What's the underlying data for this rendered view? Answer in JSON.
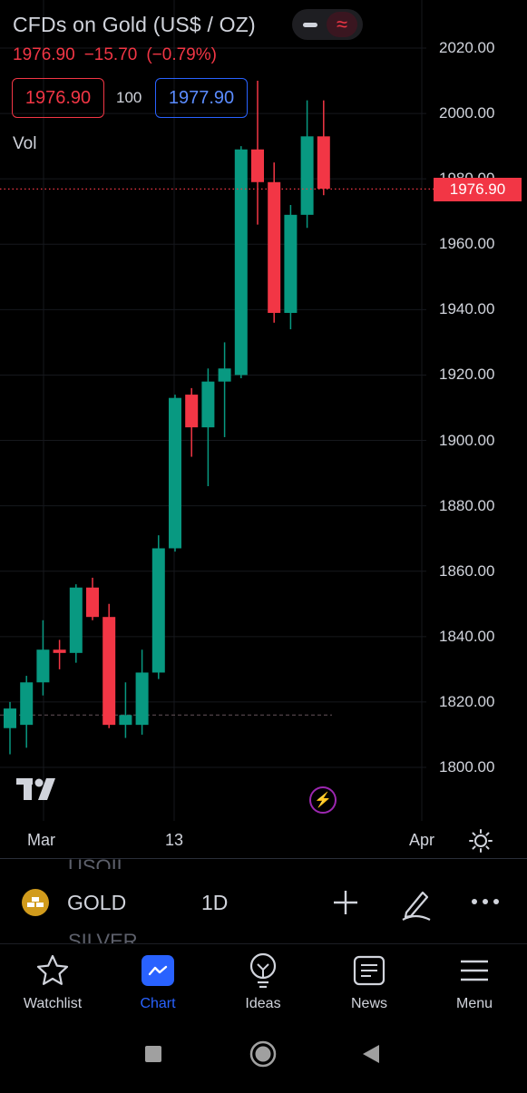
{
  "header": {
    "title": "CFDs on Gold (US$ / OZ)",
    "last": "1976.90",
    "change": "−15.70",
    "change_pct": "(−0.79%)",
    "bid": "1976.90",
    "spread": "100",
    "ask": "1977.90",
    "vol_label": "Vol"
  },
  "price_axis": {
    "labels": [
      "2020.00",
      "2000.00",
      "1980.00",
      "1960.00",
      "1940.00",
      "1920.00",
      "1900.00",
      "1880.00",
      "1860.00",
      "1840.00",
      "1820.00",
      "1800.00"
    ],
    "last_price_badge": "1976.90"
  },
  "time_axis": {
    "labels": [
      "Mar",
      "13",
      "Apr"
    ]
  },
  "colors": {
    "up": "#089981",
    "down": "#f23645",
    "accent": "#2962ff",
    "background": "#000000"
  },
  "chart_data": {
    "type": "candlestick",
    "title": "CFDs on Gold (US$ / OZ)",
    "interval": "1D",
    "ylim": [
      1790,
      2030
    ],
    "last_price": 1976.9,
    "candles": [
      {
        "o": 1812,
        "h": 1820,
        "l": 1804,
        "c": 1818
      },
      {
        "o": 1813,
        "h": 1828,
        "l": 1806,
        "c": 1826
      },
      {
        "o": 1826,
        "h": 1845,
        "l": 1822,
        "c": 1836
      },
      {
        "o": 1836,
        "h": 1839,
        "l": 1830,
        "c": 1835
      },
      {
        "o": 1835,
        "h": 1856,
        "l": 1832,
        "c": 1855
      },
      {
        "o": 1855,
        "h": 1858,
        "l": 1845,
        "c": 1846
      },
      {
        "o": 1846,
        "h": 1850,
        "l": 1812,
        "c": 1813
      },
      {
        "o": 1813,
        "h": 1826,
        "l": 1809,
        "c": 1816
      },
      {
        "o": 1813,
        "h": 1836,
        "l": 1810,
        "c": 1829
      },
      {
        "o": 1829,
        "h": 1871,
        "l": 1827,
        "c": 1867
      },
      {
        "o": 1867,
        "h": 1914,
        "l": 1866,
        "c": 1913
      },
      {
        "o": 1914,
        "h": 1916,
        "l": 1895,
        "c": 1904
      },
      {
        "o": 1904,
        "h": 1922,
        "l": 1886,
        "c": 1918
      },
      {
        "o": 1918,
        "h": 1930,
        "l": 1901,
        "c": 1922
      },
      {
        "o": 1920,
        "h": 1990,
        "l": 1919,
        "c": 1989
      },
      {
        "o": 1989,
        "h": 2010,
        "l": 1966,
        "c": 1979
      },
      {
        "o": 1979,
        "h": 1985,
        "l": 1936,
        "c": 1939
      },
      {
        "o": 1939,
        "h": 1972,
        "l": 1934,
        "c": 1969
      },
      {
        "o": 1969,
        "h": 2004,
        "l": 1965,
        "c": 1993
      },
      {
        "o": 1993,
        "h": 2004,
        "l": 1975,
        "c": 1977
      }
    ]
  },
  "toolbar": {
    "symbol": "GOLD",
    "timeframe": "1D",
    "ghost_above": "USOIL",
    "ghost_below": "SILVER"
  },
  "nav": {
    "items": [
      {
        "label": "Watchlist",
        "icon": "star-icon"
      },
      {
        "label": "Chart",
        "icon": "chart-icon",
        "active": true
      },
      {
        "label": "Ideas",
        "icon": "lightbulb-icon"
      },
      {
        "label": "News",
        "icon": "news-icon"
      },
      {
        "label": "Menu",
        "icon": "menu-icon"
      }
    ]
  }
}
